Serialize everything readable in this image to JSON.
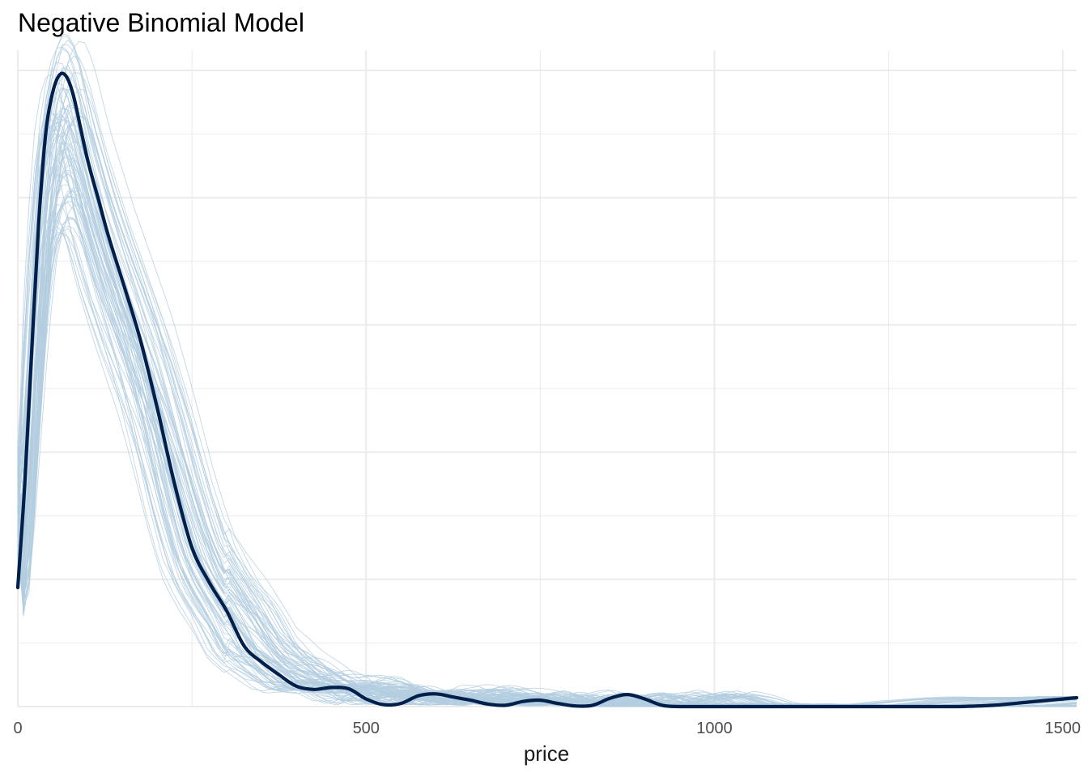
{
  "chart_data": {
    "type": "line",
    "title": "Negative Binomial Model",
    "xlabel": "price",
    "ylabel": "",
    "xlim": [
      0,
      1520
    ],
    "ylim": [
      0,
      1
    ],
    "x_ticks": [
      0,
      500,
      1000,
      1500
    ],
    "x_tick_labels": [
      "0",
      "500",
      "1000",
      "1500"
    ],
    "grid": true,
    "observed_color": "#011f4b",
    "replicate_color": "#b3cde0",
    "observed": {
      "x": [
        0,
        10,
        20,
        30,
        40,
        50,
        60,
        70,
        80,
        90,
        100,
        115,
        130,
        150,
        175,
        200,
        225,
        250,
        275,
        300,
        325,
        350,
        375,
        400,
        425,
        450,
        475,
        500,
        525,
        550,
        575,
        600,
        625,
        650,
        675,
        700,
        725,
        750,
        775,
        800,
        825,
        850,
        875,
        900,
        925,
        950,
        975,
        1000,
        1025,
        1050,
        1075,
        1100,
        1150,
        1200,
        1250,
        1300,
        1350,
        1400,
        1450,
        1480,
        1500,
        1520
      ],
      "y": [
        0.187,
        0.35,
        0.56,
        0.76,
        0.9,
        0.965,
        0.993,
        0.99,
        0.96,
        0.91,
        0.86,
        0.8,
        0.74,
        0.67,
        0.58,
        0.47,
        0.35,
        0.25,
        0.195,
        0.15,
        0.095,
        0.07,
        0.05,
        0.032,
        0.027,
        0.03,
        0.028,
        0.012,
        0.003,
        0.005,
        0.017,
        0.02,
        0.015,
        0.01,
        0.004,
        0.002,
        0.008,
        0.01,
        0.005,
        0.001,
        0.002,
        0.013,
        0.019,
        0.012,
        0.002,
        0.0,
        0.0,
        0.0,
        0.0,
        0.0,
        0.0,
        0.0,
        0.0,
        0.0,
        0.0,
        0.0,
        0.0,
        0.002,
        0.007,
        0.01,
        0.012,
        0.014
      ]
    }
  }
}
